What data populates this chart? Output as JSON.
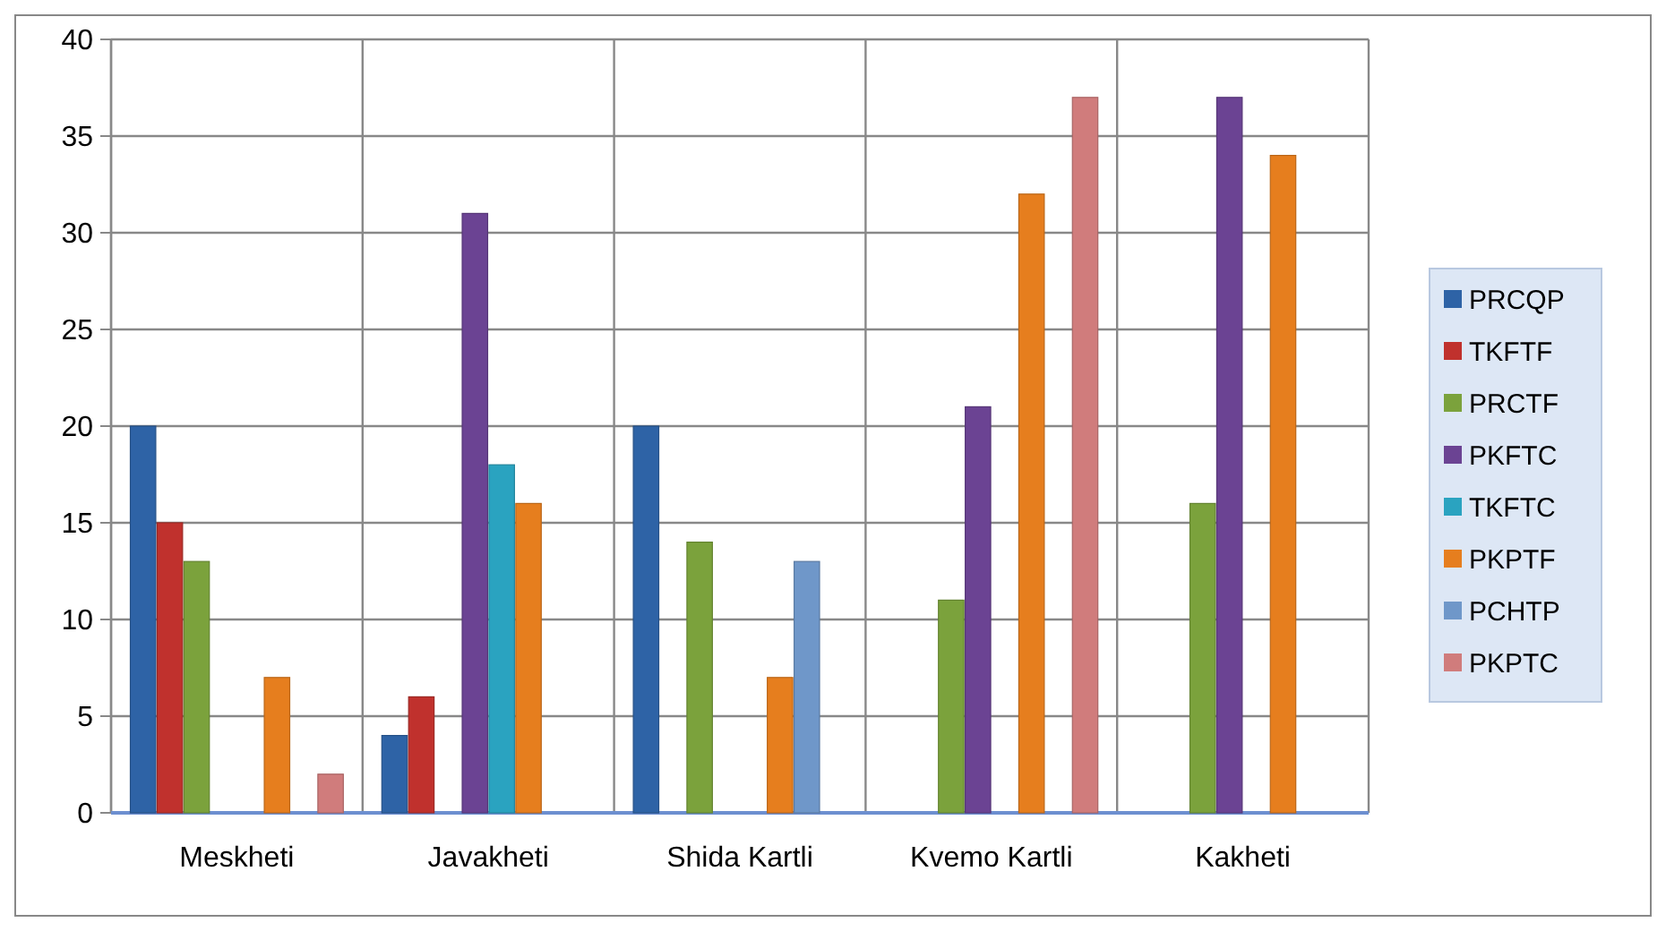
{
  "chart_data": {
    "type": "bar",
    "categories": [
      "Meskheti",
      "Javakheti",
      "Shida Kartli",
      "Kvemo Kartli",
      "Kakheti"
    ],
    "series": [
      {
        "name": "PRCQP",
        "color": "#2e63a6",
        "values": [
          20,
          4,
          20,
          null,
          null
        ]
      },
      {
        "name": "TKFTF",
        "color": "#c0312d",
        "values": [
          15,
          6,
          null,
          null,
          null
        ]
      },
      {
        "name": "PRCTF",
        "color": "#7ba23c",
        "values": [
          13,
          null,
          14,
          11,
          16
        ]
      },
      {
        "name": "PKFTC",
        "color": "#6b4393",
        "values": [
          null,
          31,
          null,
          21,
          37
        ]
      },
      {
        "name": "TKFTC",
        "color": "#2aa3c0",
        "values": [
          null,
          18,
          null,
          null,
          null
        ]
      },
      {
        "name": "PKPTF",
        "color": "#e67e1e",
        "values": [
          7,
          16,
          7,
          32,
          34
        ]
      },
      {
        "name": "PCHTP",
        "color": "#6f97c9",
        "values": [
          null,
          null,
          13,
          null,
          null
        ]
      },
      {
        "name": "PKPTC",
        "color": "#d07c7c",
        "values": [
          2,
          null,
          null,
          37,
          null
        ]
      }
    ],
    "ylim": [
      0,
      40
    ],
    "yticks": [
      0,
      5,
      10,
      15,
      20,
      25,
      30,
      35,
      40
    ],
    "grid": true,
    "legend": "right"
  }
}
